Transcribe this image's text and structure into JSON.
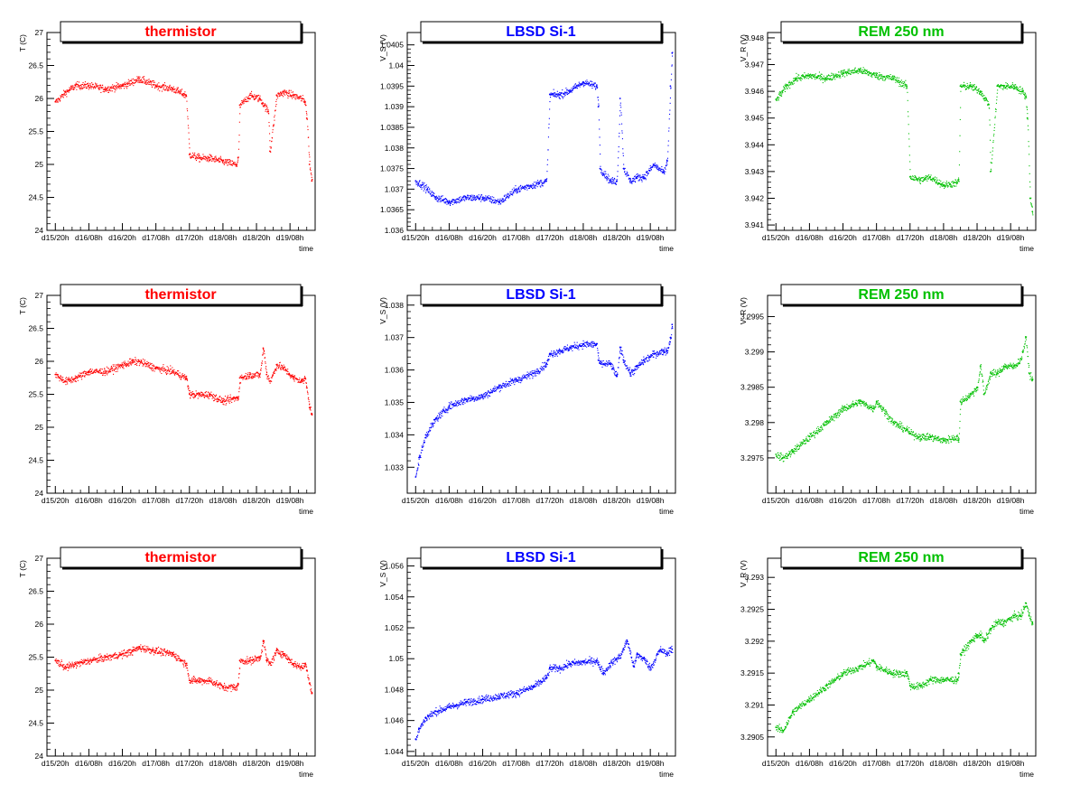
{
  "x_categories": [
    "d15/20h",
    "d16/08h",
    "d16/20h",
    "d17/08h",
    "d17/20h",
    "d18/08h",
    "d18/20h",
    "d19/08h"
  ],
  "colors": {
    "thermistor": "#ff0000",
    "lbsd": "#0000ff",
    "rem": "#00c000"
  },
  "chart_data": [
    {
      "type": "scatter",
      "title": "thermistor",
      "xlabel": "time",
      "ylabel": "T (C)",
      "ylim": [
        24,
        27
      ],
      "yticks": [
        "24",
        "24.5",
        "25",
        "25.5",
        "26",
        "26.5",
        "27"
      ],
      "series": [
        {
          "x": [
            0,
            0.3,
            0.6,
            1,
            1.5,
            2,
            2.5,
            3,
            3.5,
            3.9,
            4,
            4.3,
            4.6,
            5,
            5.4,
            5.45,
            5.5,
            5.8,
            6.1,
            6.35,
            6.4,
            6.6,
            6.8,
            7.1,
            7.35,
            7.45,
            7.5,
            7.58,
            7.65
          ],
          "y": [
            25.95,
            26.1,
            26.2,
            26.2,
            26.15,
            26.2,
            26.3,
            26.2,
            26.15,
            26.05,
            25.15,
            25.1,
            25.1,
            25.05,
            25.0,
            25.1,
            25.9,
            26.05,
            26.0,
            25.8,
            25.2,
            26.05,
            26.1,
            26.05,
            26.0,
            25.95,
            25.7,
            25.0,
            24.75
          ]
        }
      ]
    },
    {
      "type": "scatter",
      "title": "LBSD Si-1",
      "xlabel": "time",
      "ylabel": "V_S (V)",
      "ylim": [
        1.036,
        1.0408
      ],
      "yticks": [
        "1.036",
        "1.0365",
        "1.037",
        "1.0375",
        "1.038",
        "1.0385",
        "1.039",
        "1.0395",
        "1.04",
        "1.0405"
      ],
      "series": [
        {
          "x": [
            0,
            0.2,
            0.6,
            1,
            1.5,
            2,
            2.5,
            3,
            3.9,
            4,
            4.3,
            4.6,
            5,
            5.4,
            5.45,
            5.5,
            5.8,
            6.0,
            6.1,
            6.2,
            6.4,
            6.6,
            6.8,
            7.1,
            7.4,
            7.5,
            7.6,
            7.65
          ],
          "y": [
            1.0372,
            1.0371,
            1.0368,
            1.0367,
            1.0368,
            1.0368,
            1.0367,
            1.037,
            1.0372,
            1.0393,
            1.0393,
            1.0394,
            1.0396,
            1.0395,
            1.039,
            1.0375,
            1.0372,
            1.0372,
            1.0392,
            1.0375,
            1.0372,
            1.0373,
            1.0373,
            1.0376,
            1.0374,
            1.0377,
            1.0395,
            1.0403
          ]
        }
      ]
    },
    {
      "type": "scatter",
      "title": "REM 250 nm",
      "xlabel": "time",
      "ylabel": "V_R (V)",
      "ylim": [
        3.9408,
        3.9482
      ],
      "yticks": [
        "3.941",
        "3.942",
        "3.943",
        "3.944",
        "3.945",
        "3.946",
        "3.947",
        "3.948"
      ],
      "series": [
        {
          "x": [
            0,
            0.3,
            0.6,
            1,
            1.5,
            2,
            2.5,
            3,
            3.5,
            3.9,
            4,
            4.3,
            4.6,
            5,
            5.4,
            5.45,
            5.5,
            5.8,
            6.1,
            6.35,
            6.4,
            6.6,
            6.8,
            7.1,
            7.35,
            7.45,
            7.5,
            7.58,
            7.65
          ],
          "y": [
            3.9457,
            3.9462,
            3.9465,
            3.9466,
            3.9465,
            3.9467,
            3.9468,
            3.9466,
            3.9465,
            3.9462,
            3.9428,
            3.9427,
            3.9428,
            3.9425,
            3.9426,
            3.9427,
            3.9462,
            3.9462,
            3.946,
            3.9455,
            3.943,
            3.9462,
            3.9462,
            3.9462,
            3.946,
            3.9458,
            3.945,
            3.942,
            3.9415
          ]
        }
      ]
    },
    {
      "type": "scatter",
      "title": "thermistor",
      "xlabel": "time",
      "ylabel": "T (C)",
      "ylim": [
        24,
        27
      ],
      "yticks": [
        "24",
        "24.5",
        "25",
        "25.5",
        "26",
        "26.5",
        "27"
      ],
      "series": [
        {
          "x": [
            0,
            0.3,
            0.6,
            1,
            1.5,
            2,
            2.3,
            2.5,
            3,
            3.5,
            3.9,
            4,
            4.3,
            4.6,
            5,
            5.4,
            5.45,
            5.5,
            5.8,
            6.1,
            6.2,
            6.3,
            6.4,
            6.6,
            6.8,
            7.1,
            7.35,
            7.45,
            7.5,
            7.58,
            7.65
          ],
          "y": [
            25.8,
            25.7,
            25.75,
            25.85,
            25.85,
            25.95,
            26.0,
            26.0,
            25.9,
            25.85,
            25.75,
            25.5,
            25.5,
            25.5,
            25.4,
            25.45,
            25.45,
            25.75,
            25.8,
            25.8,
            26.2,
            25.8,
            25.7,
            25.95,
            25.9,
            25.75,
            25.7,
            25.75,
            25.6,
            25.3,
            25.2
          ]
        }
      ]
    },
    {
      "type": "scatter",
      "title": "LBSD Si-1",
      "xlabel": "time",
      "ylabel": "V_S (V)",
      "ylim": [
        1.0322,
        1.0383
      ],
      "yticks": [
        "1.033",
        "1.034",
        "1.035",
        "1.036",
        "1.037",
        "1.038"
      ],
      "series": [
        {
          "x": [
            0,
            0.1,
            0.3,
            0.6,
            1,
            1.5,
            2,
            2.5,
            3,
            3.5,
            3.9,
            4,
            4.3,
            4.6,
            5,
            5.4,
            5.45,
            5.5,
            5.8,
            6.0,
            6.1,
            6.2,
            6.4,
            6.6,
            6.8,
            7.1,
            7.4,
            7.5,
            7.6,
            7.65
          ],
          "y": [
            1.0327,
            1.0333,
            1.034,
            1.0345,
            1.0349,
            1.0351,
            1.0352,
            1.0355,
            1.0357,
            1.0359,
            1.0362,
            1.0365,
            1.0366,
            1.0367,
            1.0368,
            1.0368,
            1.0363,
            1.0362,
            1.0362,
            1.0358,
            1.0367,
            1.0363,
            1.0359,
            1.0361,
            1.0363,
            1.0365,
            1.0366,
            1.0366,
            1.037,
            1.0374
          ]
        }
      ]
    },
    {
      "type": "scatter",
      "title": "REM 250 nm",
      "xlabel": "time",
      "ylabel": "V_R (V)",
      "ylim": [
        3.297,
        3.2998
      ],
      "yticks": [
        "3.2975",
        "3.298",
        "3.2985",
        "3.299",
        "3.2995"
      ],
      "series": [
        {
          "x": [
            0,
            0.2,
            0.5,
            1,
            1.5,
            2,
            2.5,
            2.9,
            3,
            3.5,
            3.9,
            4,
            4.3,
            4.6,
            5,
            5.4,
            5.45,
            5.5,
            5.8,
            6.0,
            6.1,
            6.2,
            6.4,
            6.6,
            6.8,
            7.1,
            7.3,
            7.45,
            7.55,
            7.65
          ],
          "y": [
            3.29755,
            3.2975,
            3.2976,
            3.2978,
            3.298,
            3.2982,
            3.2983,
            3.2982,
            3.2983,
            3.298,
            3.2979,
            3.29785,
            3.2978,
            3.2978,
            3.29775,
            3.2978,
            3.29775,
            3.2983,
            3.2984,
            3.2985,
            3.2988,
            3.2984,
            3.2987,
            3.2987,
            3.2988,
            3.2988,
            3.2989,
            3.2992,
            3.2987,
            3.2986
          ]
        }
      ]
    },
    {
      "type": "scatter",
      "title": "thermistor",
      "xlabel": "time",
      "ylabel": "T (C)",
      "ylim": [
        24,
        27
      ],
      "yticks": [
        "24",
        "24.5",
        "25",
        "25.5",
        "26",
        "26.5",
        "27"
      ],
      "series": [
        {
          "x": [
            0,
            0.3,
            0.6,
            1,
            1.5,
            2,
            2.3,
            2.5,
            3,
            3.5,
            3.9,
            4,
            4.3,
            4.6,
            5,
            5.4,
            5.45,
            5.5,
            5.8,
            6.1,
            6.2,
            6.3,
            6.4,
            6.6,
            6.8,
            7.1,
            7.35,
            7.45,
            7.5,
            7.58,
            7.65
          ],
          "y": [
            25.45,
            25.35,
            25.4,
            25.45,
            25.5,
            25.55,
            25.6,
            25.65,
            25.6,
            25.55,
            25.4,
            25.15,
            25.15,
            25.15,
            25.05,
            25.05,
            25.1,
            25.45,
            25.45,
            25.5,
            25.75,
            25.45,
            25.4,
            25.6,
            25.55,
            25.4,
            25.35,
            25.4,
            25.3,
            25.1,
            24.95
          ]
        }
      ]
    },
    {
      "type": "scatter",
      "title": "LBSD Si-1",
      "xlabel": "time",
      "ylabel": "V_S (V)",
      "ylim": [
        1.0437,
        1.0565
      ],
      "yticks": [
        "1.044",
        "1.046",
        "1.048",
        "1.05",
        "1.052",
        "1.054",
        "1.056"
      ],
      "series": [
        {
          "x": [
            0,
            0.1,
            0.3,
            0.6,
            1,
            1.5,
            2,
            2.5,
            3,
            3.5,
            3.9,
            4,
            4.3,
            4.6,
            5,
            5.4,
            5.45,
            5.6,
            5.8,
            6.1,
            6.3,
            6.5,
            6.6,
            6.8,
            7.0,
            7.2,
            7.3,
            7.5,
            7.6,
            7.65
          ],
          "y": [
            1.0448,
            1.0455,
            1.0462,
            1.0466,
            1.0469,
            1.0472,
            1.0474,
            1.0476,
            1.0478,
            1.0482,
            1.0488,
            1.0494,
            1.0494,
            1.0497,
            1.0498,
            1.0499,
            1.0496,
            1.0491,
            1.0497,
            1.0502,
            1.0512,
            1.0495,
            1.0503,
            1.05,
            1.0494,
            1.0503,
            1.0506,
            1.0503,
            1.0507,
            1.0506
          ]
        }
      ]
    },
    {
      "type": "scatter",
      "title": "REM 250 nm",
      "xlabel": "time",
      "ylabel": "V_R (V)",
      "ylim": [
        3.2902,
        3.2933
      ],
      "yticks": [
        "3.2905",
        "3.291",
        "3.2915",
        "3.292",
        "3.2925",
        "3.293"
      ],
      "series": [
        {
          "x": [
            0,
            0.2,
            0.5,
            1,
            1.5,
            2,
            2.5,
            2.9,
            3,
            3.5,
            3.9,
            4,
            4.3,
            4.6,
            5,
            5.4,
            5.45,
            5.5,
            5.8,
            6.0,
            6.1,
            6.2,
            6.4,
            6.6,
            6.8,
            7.1,
            7.3,
            7.45,
            7.55,
            7.65
          ],
          "y": [
            3.29065,
            3.2906,
            3.2909,
            3.2911,
            3.2913,
            3.2915,
            3.2916,
            3.2917,
            3.2916,
            3.2915,
            3.2915,
            3.2913,
            3.2913,
            3.2914,
            3.2914,
            3.2914,
            3.2915,
            3.2918,
            3.292,
            3.2921,
            3.2921,
            3.292,
            3.2922,
            3.2923,
            3.2923,
            3.2924,
            3.2924,
            3.2926,
            3.2924,
            3.2923
          ]
        }
      ]
    }
  ]
}
